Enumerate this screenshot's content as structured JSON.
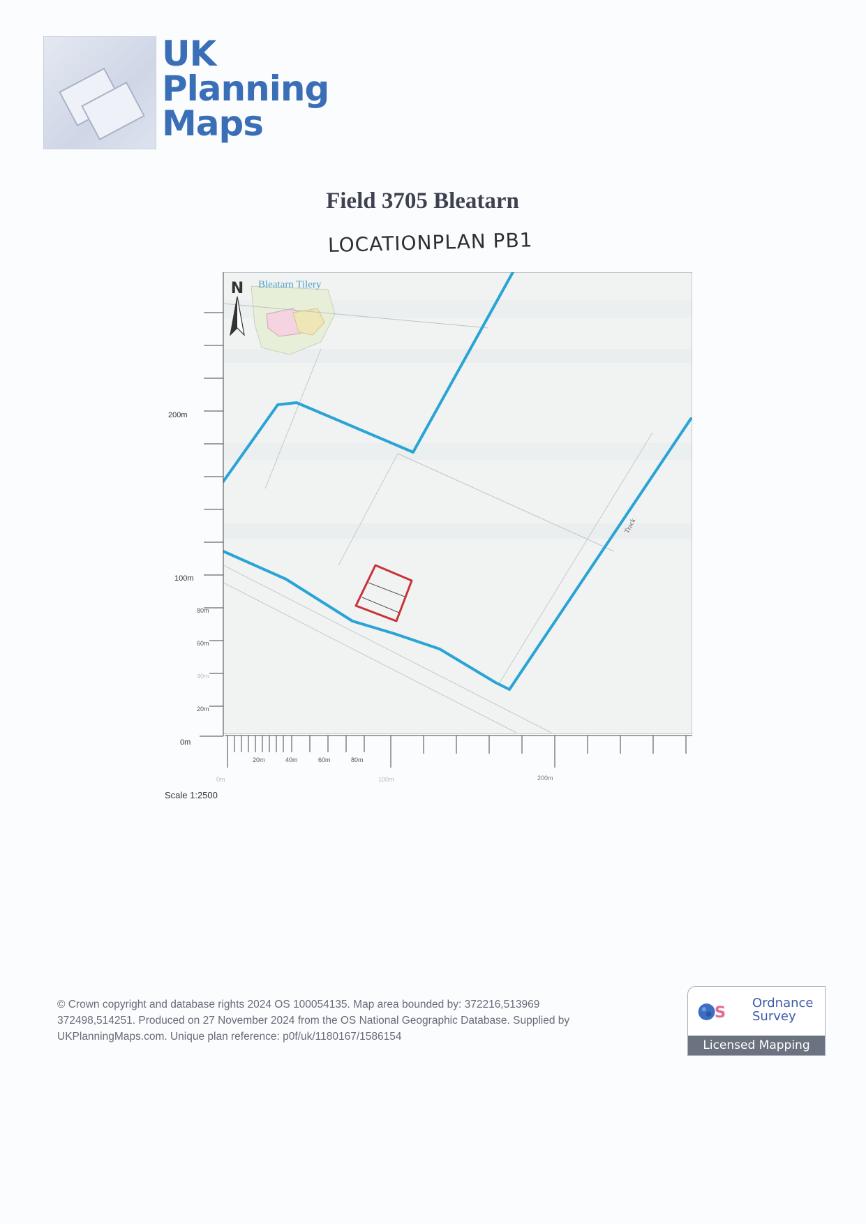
{
  "logo": {
    "lines": [
      "UK",
      "Planning",
      "Maps"
    ],
    "brand_color": "#3a6fb8"
  },
  "title": "Field 3705 Bleatarn",
  "handwritten_note": "LOCATIONPLAN PB1",
  "map": {
    "north_label": "N",
    "place_label": "Bleatarn Tilery",
    "track_label": "Track",
    "boundary_color": "#2aa3d6",
    "site_color": "#c8333a",
    "y_axis_labels": {
      "major": [
        "200m",
        "100m",
        "0m"
      ],
      "minor": [
        "80m",
        "60m",
        "40m",
        "20m"
      ]
    },
    "x_axis_labels": {
      "minor": [
        "20m",
        "40m",
        "60m",
        "80m"
      ],
      "major": [
        "0m",
        "100m",
        "200m"
      ]
    },
    "scale": "Scale 1:2500"
  },
  "footer": {
    "copyright_lines": [
      "© Crown copyright and database rights 2024 OS 100054135. Map area bounded by: 372216,513969",
      "372498,514251. Produced on 27 November 2024 from the OS National Geographic Database. Supplied by",
      "UKPlanningMaps.com. Unique plan reference: p0f/uk/1180167/1586154"
    ]
  },
  "badge": {
    "name_line1": "Ordnance",
    "name_line2": "Survey",
    "bar_text": "Licensed Mapping"
  }
}
